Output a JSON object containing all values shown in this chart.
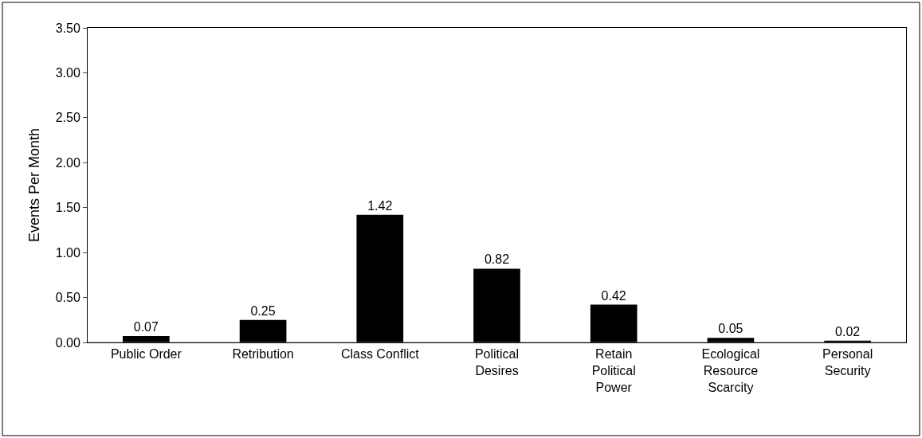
{
  "chart_data": {
    "type": "bar",
    "ylabel": "Events Per Month",
    "categories": [
      "Public Order",
      "Retribution",
      "Class Conflict",
      "Political Desires",
      "Retain Political Power",
      "Ecological Resource Scarcity",
      "Personal Security"
    ],
    "values": [
      0.07,
      0.25,
      1.42,
      0.82,
      0.42,
      0.05,
      0.02
    ],
    "color": "#000000",
    "ylim": [
      0,
      3.5
    ],
    "yticks": [
      {
        "value": 0,
        "label": "0.00"
      },
      {
        "value": 0.5,
        "label": "0.50"
      },
      {
        "value": 1,
        "label": "1.00"
      },
      {
        "value": 1.5,
        "label": "1.50"
      },
      {
        "value": 2,
        "label": "2.00"
      },
      {
        "value": 2.5,
        "label": "2.50"
      },
      {
        "value": 3,
        "label": "3.00"
      },
      {
        "value": 3.5,
        "label": "3.50"
      }
    ],
    "data_labels": true
  }
}
